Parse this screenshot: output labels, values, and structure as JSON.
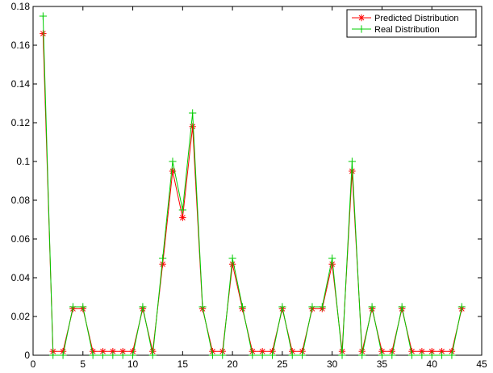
{
  "chart_data": {
    "type": "line",
    "title": "",
    "xlabel": "",
    "ylabel": "",
    "xlim": [
      0,
      45
    ],
    "ylim": [
      0,
      0.18
    ],
    "xticks": [
      0,
      5,
      10,
      15,
      20,
      25,
      30,
      35,
      40,
      45
    ],
    "yticks": [
      0,
      0.02,
      0.04,
      0.06,
      0.08,
      0.1,
      0.12,
      0.14,
      0.16,
      0.18
    ],
    "grid": false,
    "legend_position": "top-right",
    "x": [
      1,
      2,
      3,
      4,
      5,
      6,
      7,
      8,
      9,
      10,
      11,
      12,
      13,
      14,
      15,
      16,
      17,
      18,
      19,
      20,
      21,
      22,
      23,
      24,
      25,
      26,
      27,
      28,
      29,
      30,
      31,
      32,
      33,
      34,
      35,
      36,
      37,
      38,
      39,
      40,
      41,
      42,
      43
    ],
    "series": [
      {
        "name": "Predicted Distribution",
        "color": "#ff0000",
        "marker": "asterisk",
        "values": [
          0.166,
          0.002,
          0.002,
          0.024,
          0.024,
          0.002,
          0.002,
          0.002,
          0.002,
          0.002,
          0.024,
          0.002,
          0.047,
          0.095,
          0.071,
          0.118,
          0.024,
          0.002,
          0.002,
          0.047,
          0.024,
          0.002,
          0.002,
          0.002,
          0.024,
          0.002,
          0.002,
          0.024,
          0.024,
          0.047,
          0.002,
          0.095,
          0.002,
          0.024,
          0.002,
          0.002,
          0.024,
          0.002,
          0.002,
          0.002,
          0.002,
          0.002,
          0.024
        ]
      },
      {
        "name": "Real Distribution",
        "color": "#00cc00",
        "marker": "plus",
        "values": [
          0.175,
          0.0,
          0.0,
          0.025,
          0.025,
          0.0,
          0.0,
          0.0,
          0.0,
          0.0,
          0.025,
          0.0,
          0.05,
          0.1,
          0.075,
          0.125,
          0.025,
          0.0,
          0.0,
          0.05,
          0.025,
          0.0,
          0.0,
          0.0,
          0.025,
          0.0,
          0.0,
          0.025,
          0.025,
          0.05,
          0.0,
          0.1,
          0.0,
          0.025,
          0.0,
          0.0,
          0.025,
          0.0,
          0.0,
          0.0,
          0.0,
          0.0,
          0.025
        ]
      }
    ]
  }
}
